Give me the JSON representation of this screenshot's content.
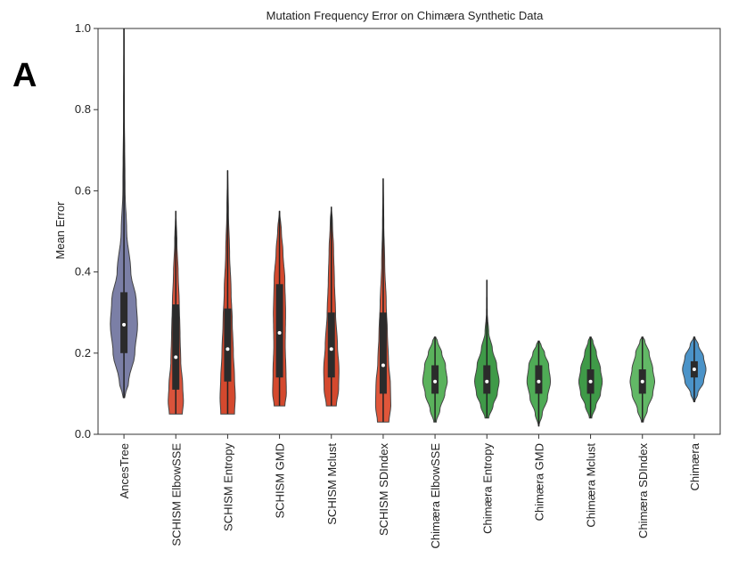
{
  "figure": {
    "panel_letter": "A"
  },
  "chart_data": {
    "type": "violin",
    "title": "Mutation Frequency Error on Chimæra Synthetic Data",
    "xlabel": "",
    "ylabel": "Mean Error",
    "ylim": [
      0,
      1.0
    ],
    "yticks": [
      "0.0",
      "0.2",
      "0.4",
      "0.6",
      "0.8",
      "1.0"
    ],
    "grid": false,
    "categories": [
      "AncesTree",
      "SCHISM ElbowSSE",
      "SCHISM Entropy",
      "SCHISM GMD",
      "SCHISM Mclust",
      "SCHISM SDIndex",
      "Chimæra ElbowSSE",
      "Chimæra Entropy",
      "Chimæra GMD",
      "Chimæra Mclust",
      "Chimæra SDIndex",
      "Chimæra"
    ],
    "colors": [
      "#7b7fa6",
      "#d9533b",
      "#d4492e",
      "#d4492e",
      "#d4492e",
      "#e0563a",
      "#5ab25c",
      "#3f9a48",
      "#4fab56",
      "#3f9a48",
      "#62b866",
      "#4b93c8"
    ],
    "violins": [
      {
        "min": 0.09,
        "q1": 0.2,
        "median": 0.27,
        "q3": 0.35,
        "max": 1.0,
        "width": 0.5,
        "profile": [
          [
            0.09,
            0.05
          ],
          [
            0.13,
            0.35
          ],
          [
            0.2,
            0.8
          ],
          [
            0.27,
            1.0
          ],
          [
            0.33,
            0.9
          ],
          [
            0.4,
            0.5
          ],
          [
            0.5,
            0.2
          ],
          [
            0.6,
            0.08
          ],
          [
            0.8,
            0.03
          ],
          [
            1.0,
            0.01
          ]
        ]
      },
      {
        "min": 0.05,
        "q1": 0.11,
        "median": 0.19,
        "q3": 0.32,
        "max": 0.55,
        "width": 0.28,
        "profile": [
          [
            0.05,
            0.85
          ],
          [
            0.08,
            1.0
          ],
          [
            0.12,
            0.9
          ],
          [
            0.18,
            0.65
          ],
          [
            0.25,
            0.55
          ],
          [
            0.32,
            0.45
          ],
          [
            0.4,
            0.3
          ],
          [
            0.47,
            0.15
          ],
          [
            0.55,
            0.02
          ]
        ]
      },
      {
        "min": 0.05,
        "q1": 0.13,
        "median": 0.21,
        "q3": 0.31,
        "max": 0.65,
        "width": 0.28,
        "profile": [
          [
            0.05,
            0.9
          ],
          [
            0.09,
            1.0
          ],
          [
            0.14,
            0.9
          ],
          [
            0.2,
            0.75
          ],
          [
            0.28,
            0.6
          ],
          [
            0.35,
            0.45
          ],
          [
            0.45,
            0.25
          ],
          [
            0.55,
            0.1
          ],
          [
            0.65,
            0.01
          ]
        ]
      },
      {
        "min": 0.07,
        "q1": 0.14,
        "median": 0.25,
        "q3": 0.37,
        "max": 0.55,
        "width": 0.28,
        "profile": [
          [
            0.07,
            0.7
          ],
          [
            0.1,
            0.9
          ],
          [
            0.15,
            0.85
          ],
          [
            0.22,
            0.75
          ],
          [
            0.3,
            0.8
          ],
          [
            0.38,
            0.7
          ],
          [
            0.45,
            0.45
          ],
          [
            0.5,
            0.25
          ],
          [
            0.55,
            0.02
          ]
        ]
      },
      {
        "min": 0.07,
        "q1": 0.14,
        "median": 0.21,
        "q3": 0.3,
        "max": 0.56,
        "width": 0.28,
        "profile": [
          [
            0.07,
            0.65
          ],
          [
            0.11,
            0.95
          ],
          [
            0.16,
            1.0
          ],
          [
            0.22,
            0.8
          ],
          [
            0.3,
            0.55
          ],
          [
            0.38,
            0.4
          ],
          [
            0.45,
            0.3
          ],
          [
            0.52,
            0.15
          ],
          [
            0.56,
            0.02
          ]
        ]
      },
      {
        "min": 0.03,
        "q1": 0.1,
        "median": 0.17,
        "q3": 0.3,
        "max": 0.63,
        "width": 0.28,
        "profile": [
          [
            0.03,
            0.75
          ],
          [
            0.07,
            1.0
          ],
          [
            0.12,
            0.95
          ],
          [
            0.18,
            0.7
          ],
          [
            0.25,
            0.55
          ],
          [
            0.32,
            0.4
          ],
          [
            0.42,
            0.2
          ],
          [
            0.52,
            0.08
          ],
          [
            0.63,
            0.01
          ]
        ]
      },
      {
        "min": 0.03,
        "q1": 0.1,
        "median": 0.13,
        "q3": 0.17,
        "max": 0.24,
        "width": 0.45,
        "profile": [
          [
            0.03,
            0.1
          ],
          [
            0.06,
            0.4
          ],
          [
            0.1,
            0.8
          ],
          [
            0.13,
            1.0
          ],
          [
            0.17,
            0.85
          ],
          [
            0.2,
            0.55
          ],
          [
            0.23,
            0.2
          ],
          [
            0.24,
            0.05
          ]
        ]
      },
      {
        "min": 0.04,
        "q1": 0.1,
        "median": 0.13,
        "q3": 0.17,
        "max": 0.38,
        "width": 0.45,
        "profile": [
          [
            0.04,
            0.15
          ],
          [
            0.07,
            0.5
          ],
          [
            0.1,
            0.85
          ],
          [
            0.13,
            1.0
          ],
          [
            0.17,
            0.8
          ],
          [
            0.21,
            0.45
          ],
          [
            0.25,
            0.15
          ],
          [
            0.3,
            0.03
          ],
          [
            0.38,
            0.01
          ]
        ]
      },
      {
        "min": 0.02,
        "q1": 0.1,
        "median": 0.13,
        "q3": 0.17,
        "max": 0.23,
        "width": 0.43,
        "profile": [
          [
            0.02,
            0.02
          ],
          [
            0.05,
            0.3
          ],
          [
            0.09,
            0.75
          ],
          [
            0.13,
            1.0
          ],
          [
            0.17,
            0.85
          ],
          [
            0.2,
            0.5
          ],
          [
            0.22,
            0.2
          ],
          [
            0.23,
            0.05
          ]
        ]
      },
      {
        "min": 0.04,
        "q1": 0.1,
        "median": 0.13,
        "q3": 0.16,
        "max": 0.24,
        "width": 0.43,
        "profile": [
          [
            0.04,
            0.1
          ],
          [
            0.07,
            0.45
          ],
          [
            0.1,
            0.85
          ],
          [
            0.13,
            1.0
          ],
          [
            0.16,
            0.85
          ],
          [
            0.2,
            0.5
          ],
          [
            0.23,
            0.2
          ],
          [
            0.24,
            0.05
          ]
        ]
      },
      {
        "min": 0.03,
        "q1": 0.1,
        "median": 0.13,
        "q3": 0.16,
        "max": 0.24,
        "width": 0.45,
        "profile": [
          [
            0.03,
            0.08
          ],
          [
            0.06,
            0.4
          ],
          [
            0.1,
            0.85
          ],
          [
            0.13,
            1.0
          ],
          [
            0.16,
            0.85
          ],
          [
            0.2,
            0.55
          ],
          [
            0.23,
            0.2
          ],
          [
            0.24,
            0.05
          ]
        ]
      },
      {
        "min": 0.08,
        "q1": 0.14,
        "median": 0.16,
        "q3": 0.18,
        "max": 0.24,
        "width": 0.43,
        "profile": [
          [
            0.08,
            0.05
          ],
          [
            0.1,
            0.3
          ],
          [
            0.13,
            0.8
          ],
          [
            0.16,
            1.0
          ],
          [
            0.19,
            0.8
          ],
          [
            0.22,
            0.35
          ],
          [
            0.24,
            0.05
          ]
        ]
      }
    ]
  }
}
